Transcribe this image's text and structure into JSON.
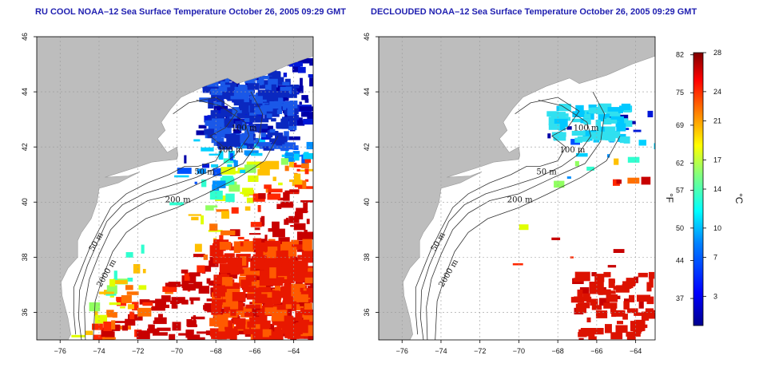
{
  "panels": [
    {
      "title": "RU COOL NOAA–12 Sea Surface Temperature October 26, 2005 09:29 GMT",
      "mode": "cloudy"
    },
    {
      "title": "DECLOUDED NOAA–12 Sea Surface Temperature October 26, 2005 09:29 GMT",
      "mode": "declouded"
    }
  ],
  "axes": {
    "lon_ticks": [
      -76,
      -74,
      -72,
      -70,
      -68,
      -66,
      -64
    ],
    "lat_ticks": [
      36,
      38,
      40,
      42,
      44,
      46
    ],
    "lon_range": [
      -77.2,
      -63
    ],
    "lat_range": [
      35,
      46
    ]
  },
  "contour_labels": [
    {
      "text": "100 m",
      "lon": -67.2,
      "lat": 42.6
    },
    {
      "text": "100 m",
      "lon": -67.9,
      "lat": 41.8
    },
    {
      "text": "50 m",
      "lon": -69.1,
      "lat": 41.0
    },
    {
      "text": "200 m",
      "lon": -70.6,
      "lat": 40.0
    },
    {
      "text": "50 m",
      "lon": -74.3,
      "lat": 38.2
    },
    {
      "text": "2000 m",
      "lon": -73.9,
      "lat": 36.9
    }
  ],
  "colorbar": {
    "fahrenheit_label": "°F",
    "celsius_label": "°C",
    "fahrenheit_ticks": [
      "82",
      "75",
      "69",
      "62",
      "57",
      "50",
      "44",
      "37"
    ],
    "celsius_ticks": [
      "28",
      "24",
      "21",
      "17",
      "14",
      "10",
      "7",
      "3"
    ],
    "celsius_values": [
      28,
      24,
      21,
      17,
      14,
      10,
      7,
      3
    ],
    "fahrenheit_values": [
      82,
      75,
      69,
      62,
      57,
      50,
      44,
      37
    ],
    "range_c": [
      0,
      28
    ]
  },
  "colors": {
    "land": "#bdbdbd",
    "ocean_cloud": "#ffffff",
    "cold": "#0a1e9c",
    "warm": "#cc1100",
    "contour": "#333333"
  }
}
